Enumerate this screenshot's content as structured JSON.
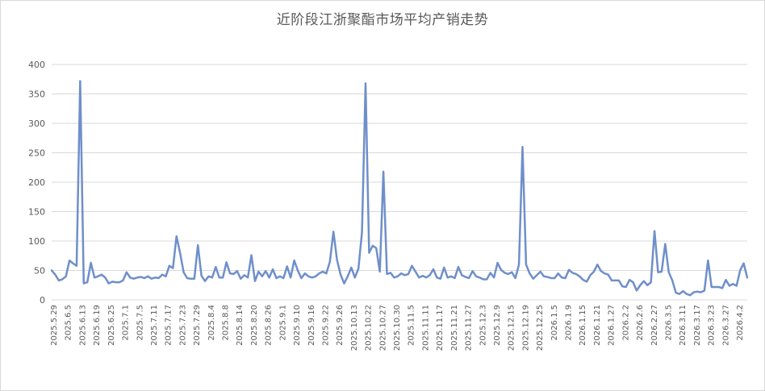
{
  "chart_data": {
    "type": "line",
    "title": "近阶段江浙聚酯市场平均产销走势",
    "xlabel": "",
    "ylabel": "",
    "ylim": [
      0,
      400
    ],
    "yticks": [
      0,
      50,
      100,
      150,
      200,
      250,
      300,
      350,
      400
    ],
    "grid": "horizontal",
    "legend": "none",
    "colors": {
      "line": "#6f8fca",
      "grid": "#d9d9d9",
      "text": "#595959"
    },
    "x_tick_labels": [
      "2025.5.29",
      "2025.6.5",
      "2025.6.13",
      "2025.6.19",
      "2025.6.25",
      "2025.7.1",
      "2025.7.5",
      "2025.7.11",
      "2025.7.17",
      "2025.7.23",
      "2025.7.29",
      "2025.8.4",
      "2025.8.8",
      "2025.8.14",
      "2025.8.20",
      "2025.8.26",
      "2025.9.1",
      "2025.9.10",
      "2025.9.16",
      "2025.9.22",
      "2025.9.26",
      "2025.10.13",
      "2025.10.22",
      "2025.10.27",
      "2025.10.30",
      "2025.11.5",
      "2025.11.11",
      "2025.11.17",
      "2025.11.21",
      "2025.11.27",
      "2025.12.3",
      "2025.12.9",
      "2025.12.15",
      "2025.12.19",
      "2025.12.25",
      "2026.1.5",
      "2026.1.9",
      "2026.1.15",
      "2026.1.21",
      "2026.1.27",
      "2026.2.2",
      "2026.2.6",
      "2026.2.27",
      "2026.3.5",
      "2026.3.11",
      "2026.3.17",
      "2026.3.23",
      "2026.3.27",
      "2026.4.2"
    ],
    "series": [
      {
        "values": [
          50,
          43,
          33,
          35,
          40,
          67,
          62,
          58,
          372,
          28,
          30,
          63,
          38,
          40,
          43,
          38,
          28,
          31,
          30,
          30,
          33,
          47,
          38,
          36,
          38,
          39,
          37,
          40,
          36,
          38,
          37,
          43,
          40,
          58,
          54,
          108,
          80,
          47,
          37,
          36,
          36,
          93,
          41,
          32,
          40,
          38,
          56,
          38,
          38,
          64,
          45,
          44,
          49,
          36,
          42,
          38,
          76,
          32,
          48,
          40,
          49,
          38,
          52,
          37,
          40,
          37,
          57,
          38,
          67,
          50,
          37,
          45,
          40,
          38,
          40,
          45,
          48,
          45,
          65,
          116,
          68,
          43,
          28,
          40,
          55,
          38,
          53,
          115,
          368,
          80,
          92,
          88,
          48,
          218,
          44,
          46,
          38,
          40,
          45,
          42,
          44,
          58,
          48,
          38,
          41,
          38,
          42,
          52,
          38,
          36,
          55,
          38,
          40,
          37,
          56,
          42,
          39,
          37,
          49,
          40,
          38,
          35,
          35,
          46,
          38,
          63,
          51,
          46,
          44,
          47,
          37,
          60,
          260,
          60,
          45,
          36,
          42,
          48,
          40,
          39,
          37,
          37,
          45,
          38,
          37,
          51,
          46,
          44,
          40,
          34,
          31,
          42,
          48,
          60,
          49,
          45,
          43,
          33,
          33,
          33,
          23,
          22,
          34,
          30,
          16,
          25,
          32,
          25,
          30,
          117,
          47,
          48,
          95,
          47,
          33,
          12,
          10,
          15,
          10,
          8,
          13,
          14,
          13,
          16,
          67,
          22,
          22,
          22,
          20,
          34,
          24,
          27,
          24,
          50,
          62,
          38
        ]
      }
    ]
  }
}
